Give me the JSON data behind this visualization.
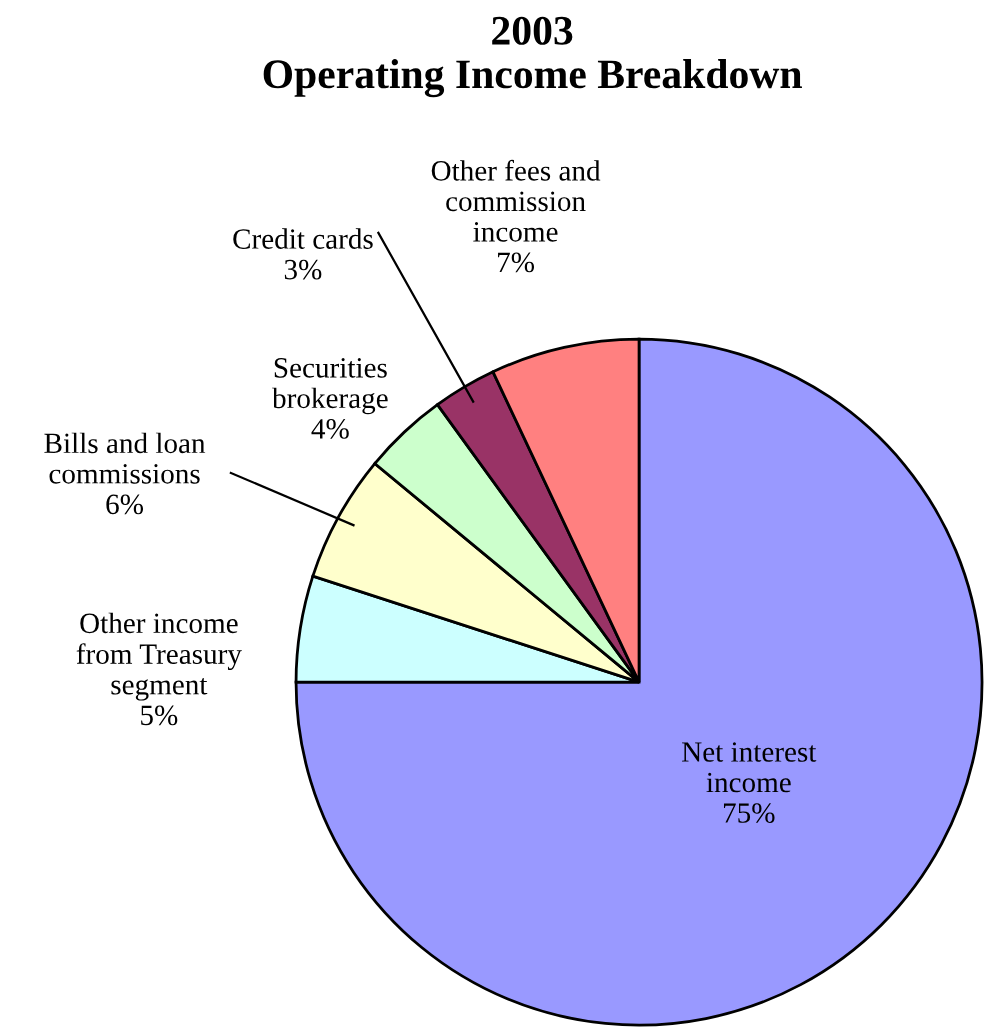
{
  "chart_data": {
    "type": "pie",
    "title": "2003\nOperating Income Breakdown",
    "categories": [
      "Net interest\nincome",
      "Other income\nfrom Treasury\nsegment",
      "Bills and loan\ncommissions",
      "Securities\nbrokerage",
      "Credit cards",
      "Other fees and\ncommission\nincome"
    ],
    "values": [
      75,
      5,
      6,
      4,
      3,
      7
    ],
    "colors": [
      "#9999ff",
      "#ccffff",
      "#ffffcc",
      "#ccffcc",
      "#993366",
      "#ff8080"
    ],
    "value_labels": [
      "75%",
      "5%",
      "6%",
      "4%",
      "3%",
      "7%"
    ]
  }
}
